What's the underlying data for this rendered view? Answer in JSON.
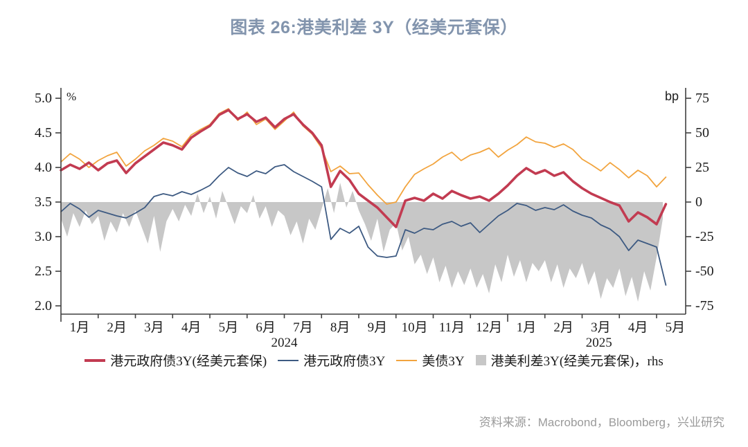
{
  "title": "图表 26:港美利差 3Y（经美元套保）",
  "source": "资料来源：Macrobond，Bloomberg，兴业研究",
  "colors": {
    "title": "#8294ad",
    "axis": "#3f3f3f",
    "tick_text": "#1c1c1c",
    "source_text": "#9a9a9a",
    "red_series": "#c23b51",
    "navy_series": "#3d5a82",
    "orange_series": "#f2a43e",
    "gray_area": "#c7c7c7"
  },
  "legend": {
    "items": [
      {
        "label": "港元政府债3Y(经美元套保)",
        "type": "line",
        "color": "#c23b51",
        "thickness": 4
      },
      {
        "label": "港元政府债3Y",
        "type": "line",
        "color": "#3d5a82",
        "thickness": 2
      },
      {
        "label": "美债3Y",
        "type": "line",
        "color": "#f2a43e",
        "thickness": 2
      },
      {
        "label": "港美利差3Y(经美元套保)，rhs",
        "type": "area",
        "color": "#c7c7c7"
      }
    ]
  },
  "chart_data": {
    "type": "line",
    "x_unit": "months since 2024-01-01",
    "left_axis": {
      "label": "%",
      "tick_values": [
        2.0,
        2.5,
        3.0,
        3.5,
        4.0,
        4.5,
        5.0
      ],
      "tick_labels": [
        "2.0",
        "2.5",
        "3.0",
        "3.5",
        "4.0",
        "4.5",
        "5.0"
      ]
    },
    "right_axis": {
      "label": "bp",
      "tick_values": [
        -75,
        -50,
        -25,
        0,
        25,
        50,
        75
      ],
      "tick_labels": [
        "-75",
        "-50",
        "-25",
        "0",
        "25",
        "50",
        "75"
      ],
      "note": "0 bp aligns with 3.5% on left axis, 25 bp = 0.5%"
    },
    "x_axis": {
      "tick_months": [
        0,
        1,
        2,
        3,
        4,
        5,
        6,
        7,
        8,
        9,
        10,
        11,
        12,
        13,
        14,
        15,
        16
      ],
      "long_tick_months": [
        0,
        12
      ],
      "labels": [
        {
          "m": 0.5,
          "text": "1月"
        },
        {
          "m": 1.5,
          "text": "2月"
        },
        {
          "m": 2.5,
          "text": "3月"
        },
        {
          "m": 3.5,
          "text": "4月"
        },
        {
          "m": 4.5,
          "text": "5月"
        },
        {
          "m": 5.5,
          "text": "6月"
        },
        {
          "m": 6.5,
          "text": "7月"
        },
        {
          "m": 7.5,
          "text": "8月"
        },
        {
          "m": 8.5,
          "text": "9月"
        },
        {
          "m": 9.5,
          "text": "10月"
        },
        {
          "m": 10.5,
          "text": "11月"
        },
        {
          "m": 11.5,
          "text": "12月"
        },
        {
          "m": 12.5,
          "text": "1月"
        },
        {
          "m": 13.5,
          "text": "2月"
        },
        {
          "m": 14.5,
          "text": "3月"
        },
        {
          "m": 15.5,
          "text": "4月"
        },
        {
          "m": 16.5,
          "text": "5月"
        }
      ],
      "years": [
        {
          "m": 6.0,
          "text": "2024"
        },
        {
          "m": 14.45,
          "text": "2025"
        }
      ]
    },
    "series": [
      {
        "name": "港元政府债3Y(经美元套保)",
        "axis": "left",
        "color": "#c23b51",
        "width": 3.6,
        "x_start": 0,
        "dx": 0.25,
        "values": [
          3.96,
          4.04,
          3.98,
          4.07,
          3.96,
          4.06,
          4.1,
          3.92,
          4.06,
          4.16,
          4.26,
          4.36,
          4.32,
          4.26,
          4.43,
          4.52,
          4.6,
          4.76,
          4.83,
          4.7,
          4.77,
          4.66,
          4.72,
          4.58,
          4.7,
          4.77,
          4.62,
          4.5,
          4.32,
          3.72,
          3.95,
          3.82,
          3.62,
          3.52,
          3.42,
          3.28,
          3.14,
          3.52,
          3.56,
          3.52,
          3.62,
          3.55,
          3.66,
          3.6,
          3.55,
          3.58,
          3.52,
          3.62,
          3.74,
          3.88,
          3.99,
          3.91,
          3.96,
          3.88,
          3.93,
          3.8,
          3.7,
          3.62,
          3.56,
          3.5,
          3.45,
          3.22,
          3.35,
          3.28,
          3.18,
          3.47
        ]
      },
      {
        "name": "港元政府债3Y",
        "axis": "left",
        "color": "#3d5a82",
        "width": 1.8,
        "x_start": 0,
        "dx": 0.25,
        "values": [
          3.36,
          3.48,
          3.4,
          3.28,
          3.38,
          3.34,
          3.3,
          3.27,
          3.34,
          3.42,
          3.58,
          3.62,
          3.59,
          3.65,
          3.61,
          3.67,
          3.74,
          3.88,
          4.0,
          3.92,
          3.87,
          3.95,
          3.91,
          4.01,
          4.04,
          3.94,
          3.87,
          3.8,
          3.72,
          2.96,
          3.12,
          3.05,
          3.15,
          2.85,
          2.72,
          2.7,
          2.72,
          3.1,
          3.05,
          3.12,
          3.1,
          3.18,
          3.22,
          3.15,
          3.2,
          3.06,
          3.18,
          3.3,
          3.38,
          3.48,
          3.45,
          3.38,
          3.42,
          3.39,
          3.46,
          3.37,
          3.31,
          3.27,
          3.17,
          3.11,
          3.0,
          2.8,
          2.95,
          2.9,
          2.85,
          2.3
        ]
      },
      {
        "name": "美债3Y",
        "axis": "left",
        "color": "#f2a43e",
        "width": 1.8,
        "x_start": 0,
        "dx": 0.25,
        "values": [
          4.08,
          4.2,
          4.12,
          4.0,
          4.1,
          4.17,
          4.22,
          4.02,
          4.12,
          4.24,
          4.32,
          4.42,
          4.38,
          4.3,
          4.47,
          4.55,
          4.62,
          4.78,
          4.85,
          4.68,
          4.8,
          4.62,
          4.7,
          4.55,
          4.67,
          4.8,
          4.6,
          4.48,
          4.28,
          3.94,
          4.02,
          3.91,
          3.92,
          3.75,
          3.6,
          3.47,
          3.5,
          3.72,
          3.9,
          3.98,
          4.05,
          4.15,
          4.22,
          4.1,
          4.18,
          4.22,
          4.28,
          4.15,
          4.25,
          4.33,
          4.44,
          4.37,
          4.35,
          4.29,
          4.34,
          4.26,
          4.12,
          4.04,
          3.95,
          4.07,
          3.97,
          3.85,
          3.96,
          3.88,
          3.72,
          3.86
        ]
      }
    ],
    "area_series": {
      "name": "港美利差3Y(经美元套保)，rhs",
      "axis": "right",
      "color": "#c7c7c7",
      "baseline_bp": 0,
      "x_start": 0,
      "dx": 0.16667,
      "values": [
        -12,
        -25,
        -8,
        -18,
        -6,
        -16,
        -10,
        -28,
        -14,
        -22,
        -8,
        -18,
        -6,
        -18,
        -30,
        -10,
        -36,
        -14,
        -5,
        -14,
        -2,
        -10,
        6,
        -8,
        4,
        -12,
        8,
        -4,
        -16,
        -3,
        -8,
        5,
        -12,
        -3,
        -18,
        -6,
        -10,
        -24,
        -14,
        -30,
        -12,
        -20,
        -5,
        10,
        -8,
        14,
        -4,
        8,
        -6,
        -16,
        -28,
        -12,
        -36,
        -20,
        -15,
        -35,
        -25,
        -45,
        -38,
        -52,
        -40,
        -58,
        -46,
        -62,
        -50,
        -60,
        -48,
        -62,
        -52,
        -66,
        -45,
        -58,
        -38,
        -54,
        -42,
        -58,
        -44,
        -50,
        -42,
        -58,
        -45,
        -62,
        -48,
        -55,
        -44,
        -60,
        -50,
        -70,
        -55,
        -62,
        -48,
        -68,
        -54,
        -72,
        -50,
        -64,
        -40,
        -12
      ]
    }
  }
}
